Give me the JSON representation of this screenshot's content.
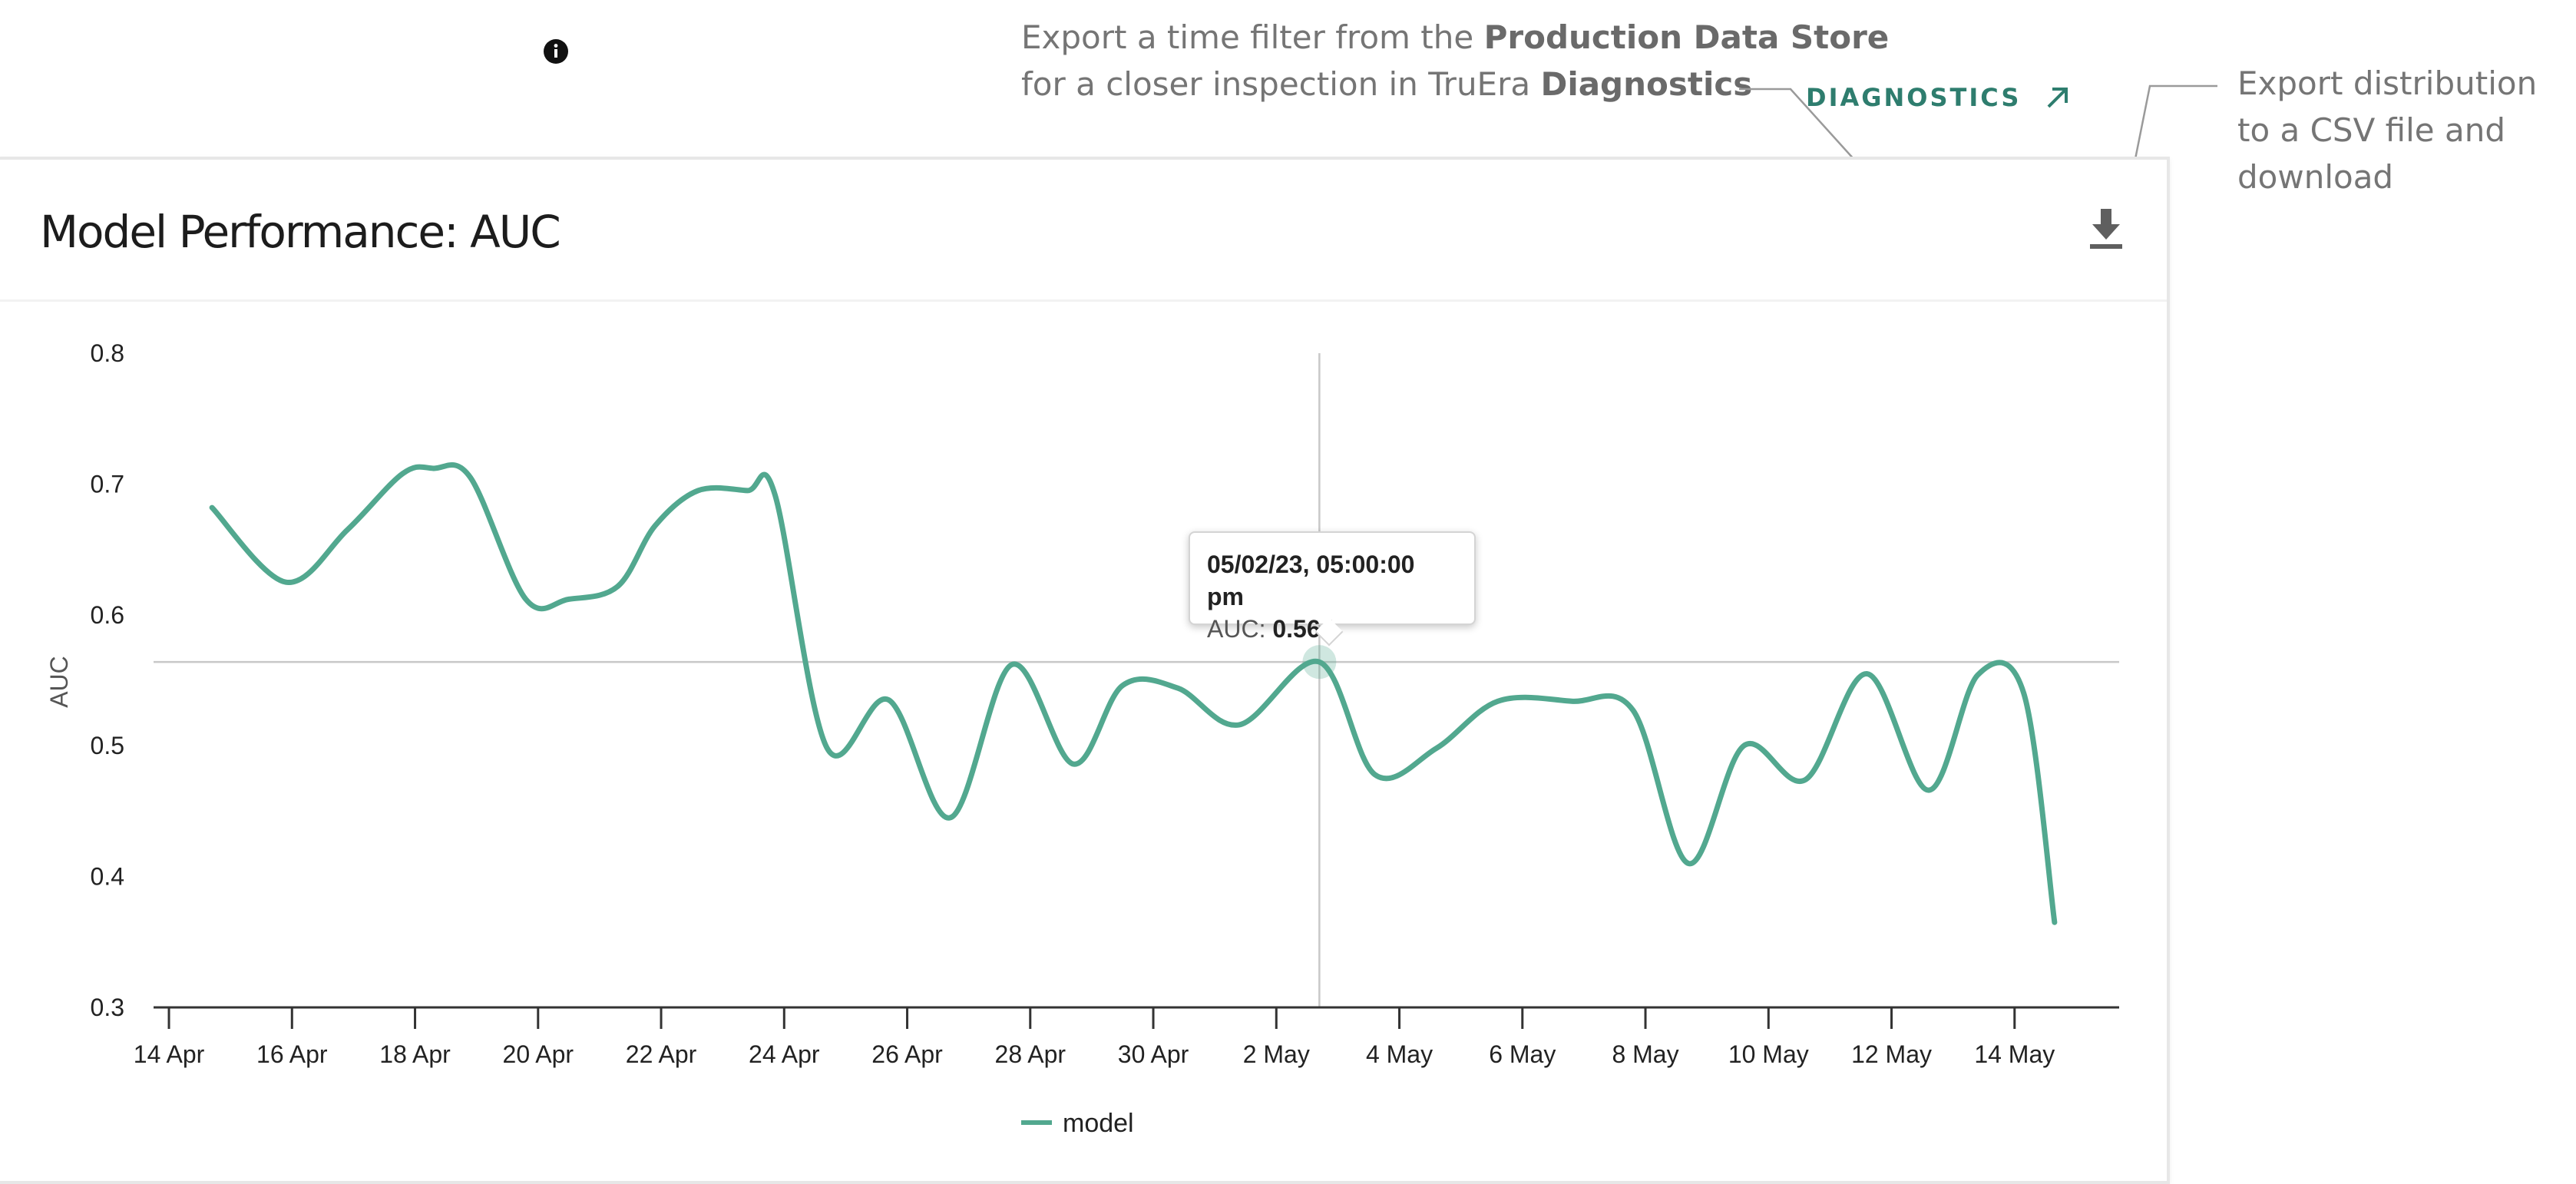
{
  "annotations": {
    "diagnostics_line1_a": "Export a time filter from the ",
    "diagnostics_line1_b": "Production Data Store",
    "diagnostics_line2_a": "for a closer inspection in TruEra ",
    "diagnostics_line2_b": "Diagnostics",
    "export_line1": "Export distribution",
    "export_line2": "to a CSV file and",
    "export_line3": "download"
  },
  "card": {
    "title": "Model Performance: AUC",
    "info_icon": "info-icon",
    "diagnostics_label": "DIAGNOSTICS",
    "diagnostics_icon": "arrow-up-right-icon",
    "download_icon": "download-icon"
  },
  "tooltip": {
    "date": "05/02/23, 05:00:00 pm",
    "metric_label": "AUC: ",
    "metric_value": "0.564"
  },
  "colors": {
    "series": "#52a88f",
    "accent": "#2e7d6e"
  },
  "chart_data": {
    "type": "line",
    "title": "Model Performance: AUC",
    "xlabel": "",
    "ylabel": "AUC",
    "ylim": [
      0.3,
      0.8
    ],
    "yticks": [
      0.3,
      0.4,
      0.5,
      0.6,
      0.7,
      0.8
    ],
    "xlim": [
      -0.25,
      31.7
    ],
    "xticks": [
      {
        "day": 0,
        "label": "14 Apr"
      },
      {
        "day": 2,
        "label": "16 Apr"
      },
      {
        "day": 4,
        "label": "18 Apr"
      },
      {
        "day": 6,
        "label": "20 Apr"
      },
      {
        "day": 8,
        "label": "22 Apr"
      },
      {
        "day": 10,
        "label": "24 Apr"
      },
      {
        "day": 12,
        "label": "26 Apr"
      },
      {
        "day": 14,
        "label": "28 Apr"
      },
      {
        "day": 16,
        "label": "30 Apr"
      },
      {
        "day": 18,
        "label": "2 May"
      },
      {
        "day": 20,
        "label": "4 May"
      },
      {
        "day": 22,
        "label": "6 May"
      },
      {
        "day": 24,
        "label": "8 May"
      },
      {
        "day": 26,
        "label": "10 May"
      },
      {
        "day": 28,
        "label": "12 May"
      },
      {
        "day": 30,
        "label": "14 May"
      }
    ],
    "legend": "bottom-center",
    "crosshair": {
      "day": 18.7,
      "value": 0.564
    },
    "series": [
      {
        "name": "model",
        "x": [
          0.7,
          1.9,
          2.9,
          3.8,
          4.3,
          4.9,
          5.8,
          6.5,
          7.3,
          7.9,
          8.6,
          9.4,
          9.85,
          10.7,
          11.7,
          12.7,
          13.7,
          14.7,
          15.5,
          16.4,
          17.4,
          18.7,
          19.6,
          20.6,
          21.6,
          22.8,
          23.8,
          24.7,
          25.6,
          26.6,
          27.6,
          28.6,
          29.4,
          30.15,
          30.65
        ],
        "values": [
          0.682,
          0.625,
          0.665,
          0.708,
          0.712,
          0.705,
          0.612,
          0.612,
          0.622,
          0.668,
          0.695,
          0.695,
          0.692,
          0.498,
          0.535,
          0.445,
          0.562,
          0.486,
          0.546,
          0.544,
          0.516,
          0.564,
          0.478,
          0.498,
          0.534,
          0.534,
          0.527,
          0.41,
          0.5,
          0.474,
          0.555,
          0.466,
          0.554,
          0.54,
          0.365
        ]
      }
    ]
  }
}
